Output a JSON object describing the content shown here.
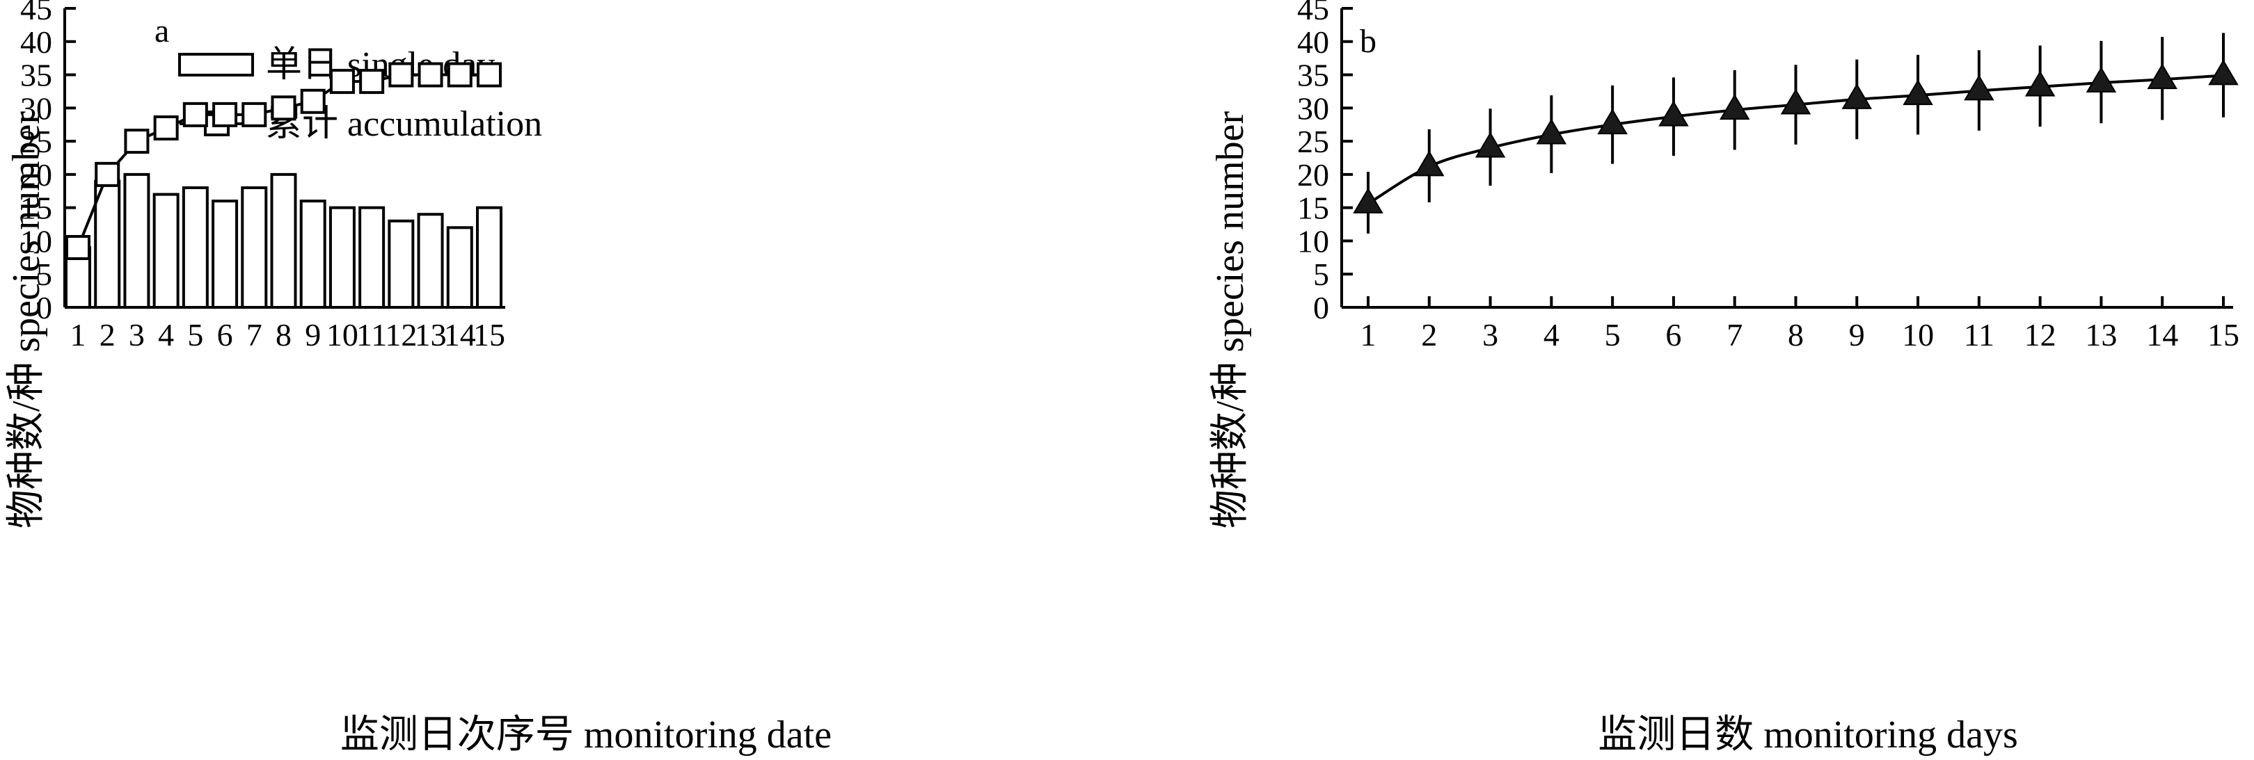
{
  "chart_data": [
    {
      "panel": "a",
      "type": "bar",
      "xlabel": "监测日次序号 monitoring date",
      "ylabel": "物种数/种 species number",
      "ylim": [
        0,
        45
      ],
      "yticks": [
        0,
        5,
        10,
        15,
        20,
        25,
        30,
        35,
        40,
        45
      ],
      "categories": [
        "1",
        "2",
        "3",
        "4",
        "5",
        "6",
        "7",
        "8",
        "9",
        "10",
        "11",
        "12",
        "13",
        "14",
        "15"
      ],
      "legend_position": "top-left",
      "series": [
        {
          "name": "单日 single day",
          "type": "bar",
          "values": [
            9,
            19,
            20,
            17,
            18,
            16,
            18,
            20,
            16,
            15,
            15,
            13,
            14,
            12,
            15
          ]
        },
        {
          "name": "累计 accumulation",
          "type": "line",
          "marker": "open-square",
          "values": [
            9,
            20,
            25,
            27,
            29,
            29,
            29,
            30,
            31,
            34,
            34,
            35,
            35,
            35,
            35
          ]
        }
      ]
    },
    {
      "panel": "b",
      "type": "scatter",
      "xlabel": "监测日数 monitoring days",
      "ylabel": "物种数/种 species number",
      "ylim": [
        0,
        45
      ],
      "yticks": [
        0,
        5,
        10,
        15,
        20,
        25,
        30,
        35,
        40,
        45
      ],
      "x": [
        1,
        2,
        3,
        4,
        5,
        6,
        7,
        8,
        9,
        10,
        11,
        12,
        13,
        14,
        15
      ],
      "series": [
        {
          "type": "scatter",
          "marker": "filled-triangle",
          "fitted_curve": true,
          "y": [
            15.6,
            21.2,
            24.0,
            26.0,
            27.5,
            28.7,
            29.7,
            30.5,
            31.3,
            31.9,
            32.6,
            33.2,
            33.8,
            34.3,
            34.9
          ],
          "error_upper": [
            20.4,
            26.8,
            29.9,
            31.9,
            33.4,
            34.6,
            35.7,
            36.5,
            37.3,
            38.0,
            38.7,
            39.4,
            40.1,
            40.7,
            41.3
          ],
          "error_lower": [
            11.1,
            15.8,
            18.3,
            20.2,
            21.6,
            22.8,
            23.7,
            24.5,
            25.3,
            26.0,
            26.6,
            27.2,
            27.7,
            28.2,
            28.6
          ]
        }
      ]
    }
  ]
}
